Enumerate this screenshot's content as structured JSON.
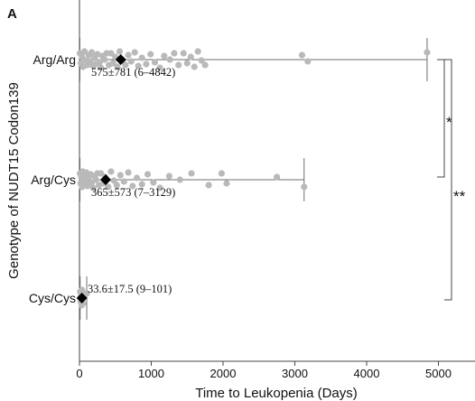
{
  "panel_label": "A",
  "chart_data": {
    "type": "scatter",
    "xlabel": "Time to Leukopenia (Days)",
    "ylabel": "Genotype of NUDT15 Codon139",
    "xlim": [
      0,
      5500
    ],
    "xticks": [
      0,
      1000,
      2000,
      3000,
      4000,
      5000
    ],
    "categories": [
      "Arg/Arg",
      "Arg/Cys",
      "Cys/Cys"
    ],
    "groups": [
      {
        "name": "Arg/Arg",
        "mean": 575,
        "sd": 781,
        "min": 6,
        "max": 4842,
        "summary": "575±781 (6–4842)",
        "points": [
          6,
          20,
          35,
          50,
          70,
          90,
          110,
          130,
          150,
          170,
          190,
          210,
          230,
          250,
          280,
          300,
          320,
          350,
          380,
          410,
          440,
          470,
          500,
          530,
          560,
          600,
          640,
          680,
          720,
          770,
          820,
          870,
          930,
          990,
          1050,
          1120,
          1180,
          1260,
          1320,
          1380,
          1450,
          1500,
          1550,
          1600,
          1650,
          1700,
          1750,
          3100,
          3180,
          4842
        ]
      },
      {
        "name": "Arg/Cys",
        "mean": 365,
        "sd": 573,
        "min": 7,
        "max": 3129,
        "summary": "365±573 (7–3129)",
        "points": [
          7,
          15,
          25,
          35,
          45,
          55,
          65,
          75,
          85,
          95,
          110,
          125,
          140,
          155,
          170,
          190,
          210,
          230,
          250,
          270,
          300,
          330,
          360,
          400,
          440,
          480,
          520,
          570,
          620,
          680,
          740,
          800,
          870,
          950,
          1030,
          1120,
          1250,
          1400,
          1560,
          1800,
          1980,
          2050,
          2750,
          3129
        ]
      },
      {
        "name": "Cys/Cys",
        "mean": 33.6,
        "sd": 17.5,
        "min": 9,
        "max": 101,
        "summary": "33.6±17.5 (9–101)",
        "points": [
          9,
          18,
          25,
          30,
          35,
          40,
          50,
          101
        ]
      }
    ],
    "annotations": [
      {
        "label": "*",
        "between": [
          "Arg/Arg",
          "Arg/Cys"
        ]
      },
      {
        "label": "**",
        "between": [
          "Arg/Arg",
          "Cys/Cys"
        ]
      }
    ],
    "grid": false,
    "legend": "none"
  },
  "colors": {
    "points": "#b9b9b9",
    "mean_marker": "#000000",
    "range_line": "#6f6f6f",
    "axis": "#444444",
    "text": "#111111"
  }
}
